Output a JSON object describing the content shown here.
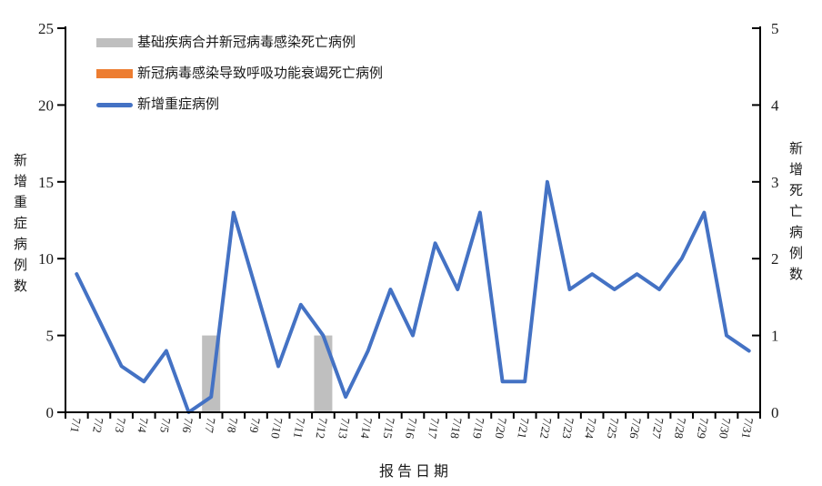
{
  "chart_data": {
    "type": "combo",
    "categories": [
      "7/1",
      "7/2",
      "7/3",
      "7/4",
      "7/5",
      "7/6",
      "7/7",
      "7/8",
      "7/9",
      "7/10",
      "7/11",
      "7/12",
      "7/13",
      "7/14",
      "7/15",
      "7/16",
      "7/17",
      "7/18",
      "7/19",
      "7/20",
      "7/21",
      "7/22",
      "7/23",
      "7/24",
      "7/25",
      "7/26",
      "7/27",
      "7/28",
      "7/29",
      "7/30",
      "7/31"
    ],
    "series": [
      {
        "name": "基础疾病合并新冠病毒感染死亡病例",
        "type": "bar",
        "axis": "right",
        "color": "#BFBFBF",
        "values": [
          0,
          0,
          0,
          0,
          0,
          0,
          1,
          0,
          0,
          0,
          0,
          1,
          0,
          0,
          0,
          0,
          0,
          0,
          0,
          0,
          0,
          0,
          0,
          0,
          0,
          0,
          0,
          0,
          0,
          0,
          0
        ]
      },
      {
        "name": "新冠病毒感染导致呼吸功能衰竭死亡病例",
        "type": "bar",
        "axis": "right",
        "color": "#ED7D31",
        "values": [
          0,
          0,
          0,
          0,
          0,
          0,
          0,
          0,
          0,
          0,
          0,
          0,
          0,
          0,
          0,
          0,
          0,
          0,
          0,
          0,
          0,
          0,
          0,
          0,
          0,
          0,
          0,
          0,
          0,
          0,
          0
        ]
      },
      {
        "name": "新增重症病例",
        "type": "line",
        "axis": "left",
        "color": "#4472C4",
        "values": [
          9,
          6,
          3,
          2,
          4,
          0,
          1,
          13,
          8,
          3,
          7,
          5,
          1,
          4,
          8,
          5,
          11,
          8,
          13,
          2,
          2,
          15,
          8,
          9,
          8,
          9,
          8,
          10,
          13,
          5,
          4
        ]
      }
    ],
    "left_axis": {
      "title": "新增重症病例数",
      "min": 0,
      "max": 25,
      "ticks": [
        0,
        5,
        10,
        15,
        20,
        25
      ]
    },
    "right_axis": {
      "title": "新增死亡病例数",
      "min": 0,
      "max": 5,
      "ticks": [
        0,
        1,
        2,
        3,
        4,
        5
      ]
    },
    "xlabel": "报告日期",
    "grid": false,
    "legend_position": "top-left",
    "background": "#FFFFFF",
    "axis_color": "#000000"
  }
}
